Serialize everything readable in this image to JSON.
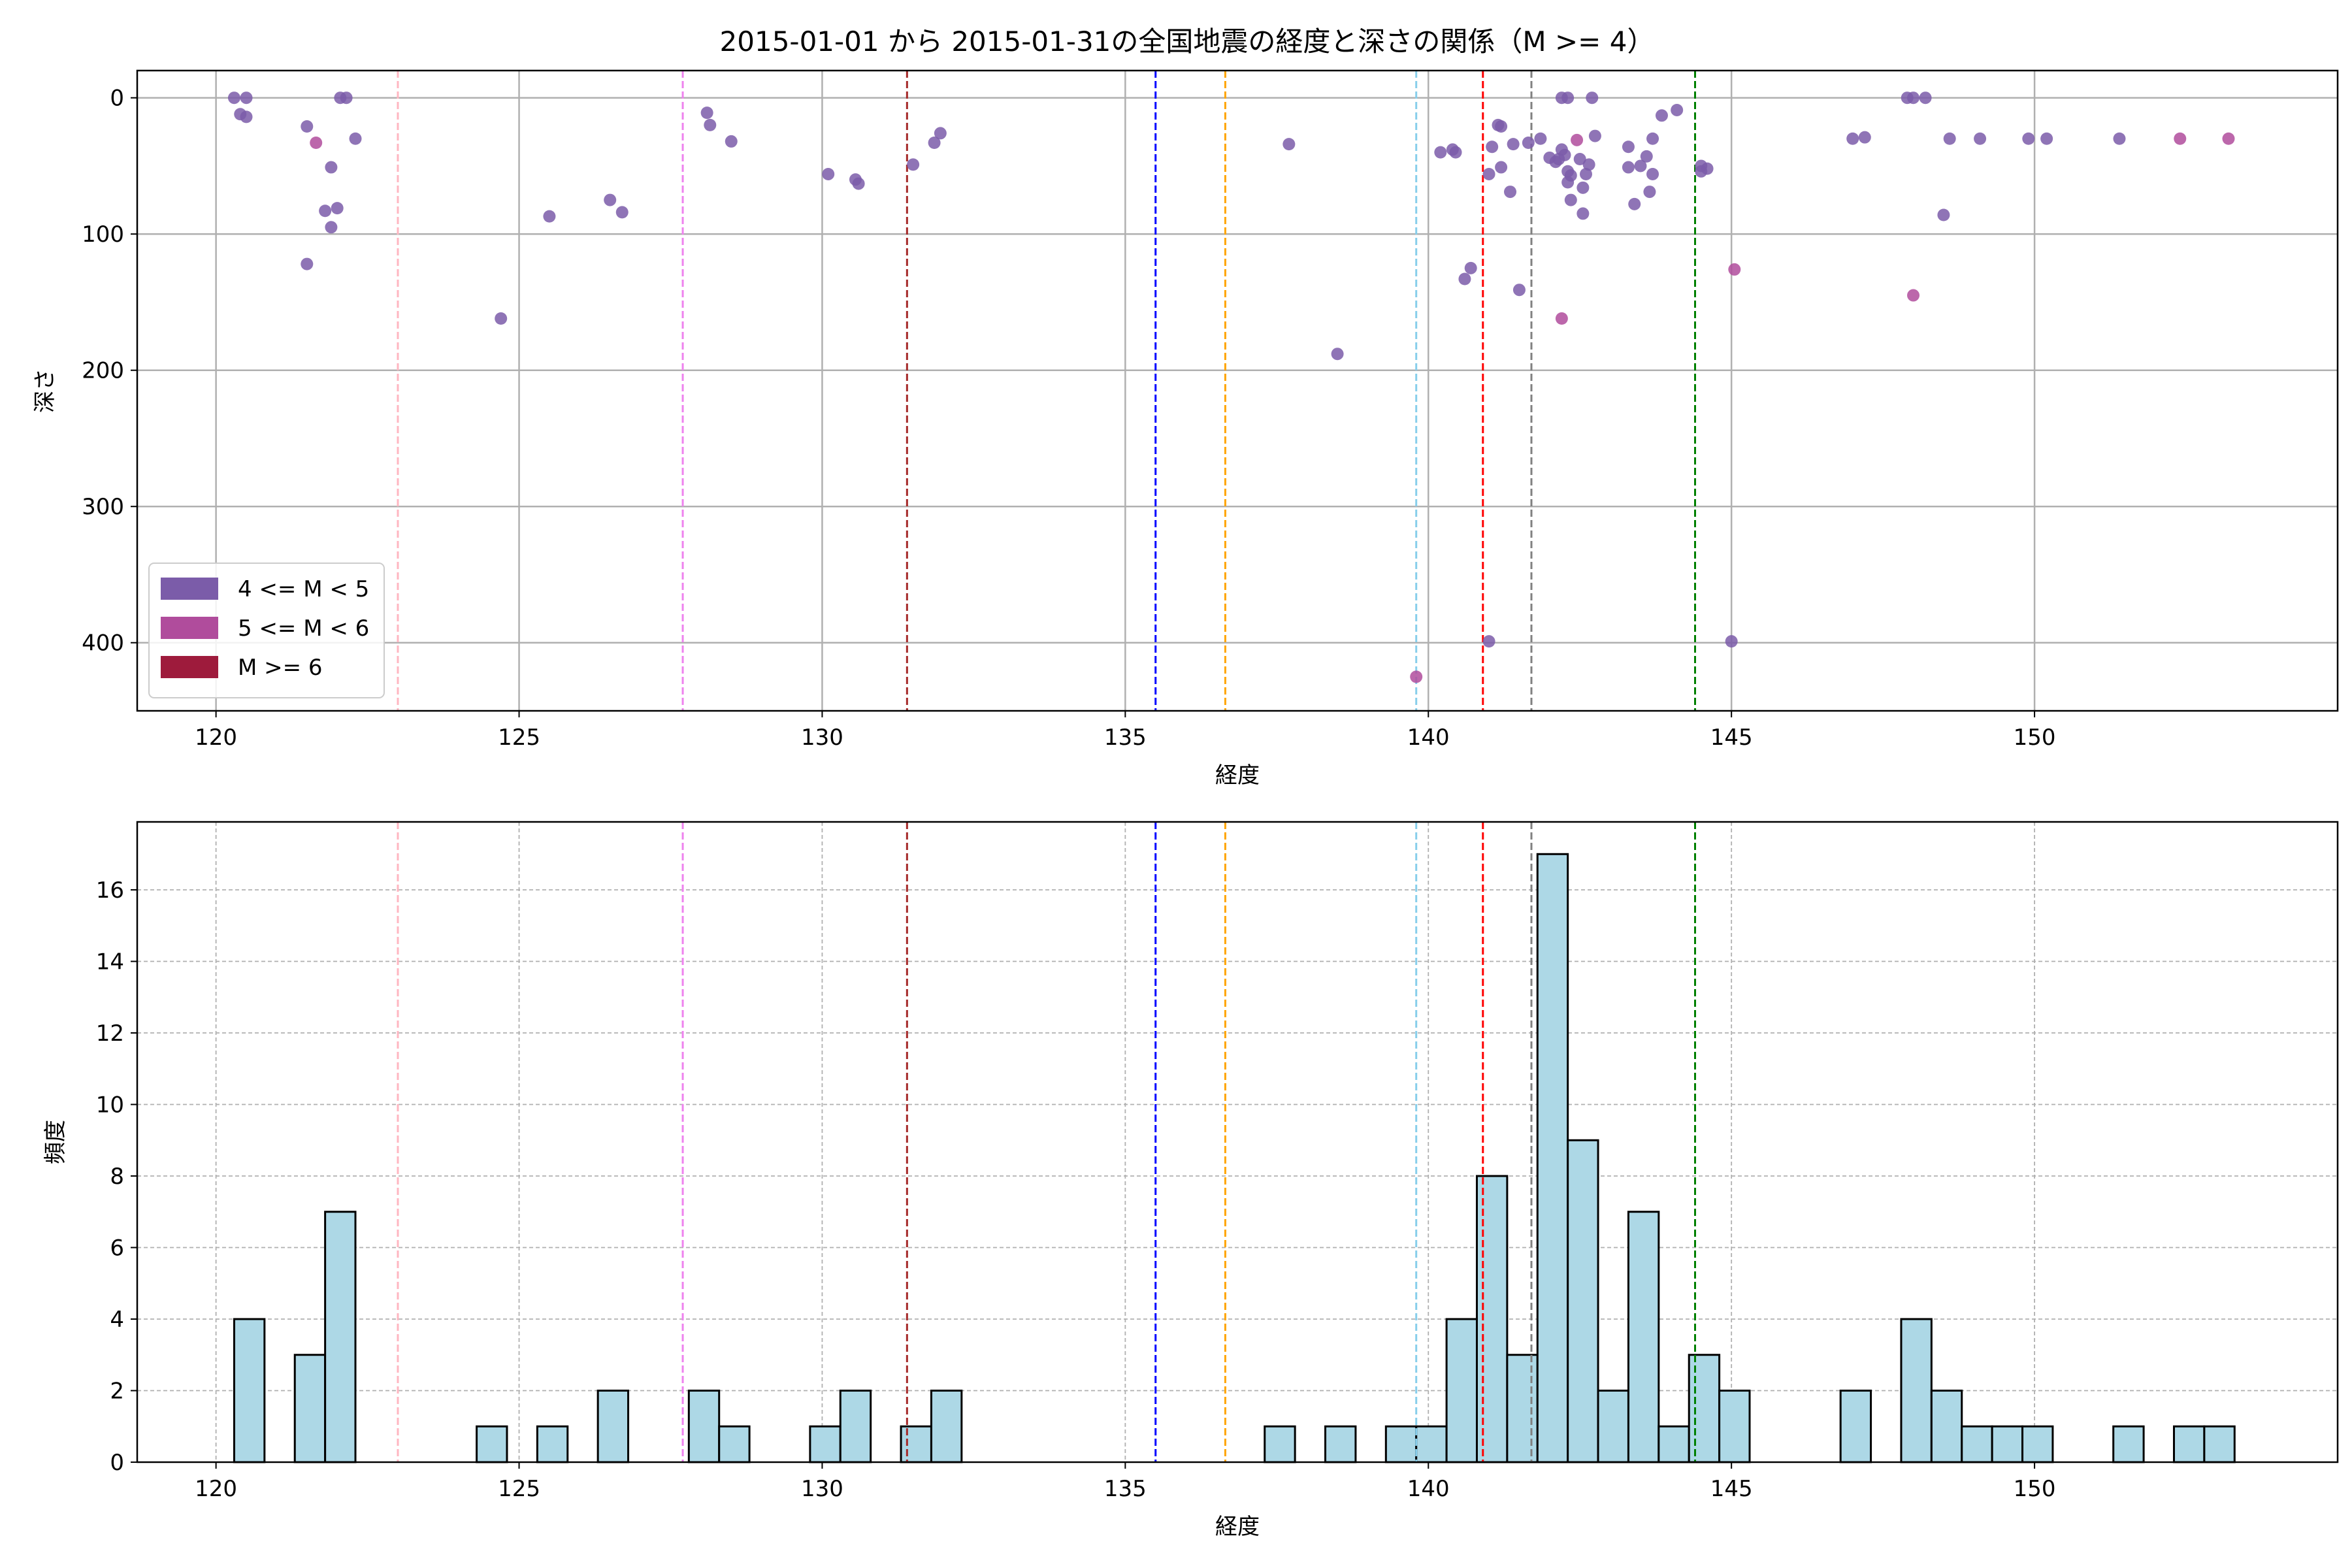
{
  "title": "2015-01-01 から 2015-01-31の全国地震の経度と深さの関係（M >= 4）",
  "colors": {
    "m4": "#7b5ca9",
    "m5": "#b04c9c",
    "m6": "#9e1b3c",
    "hist_fill": "#add8e6",
    "hist_edge": "#000000",
    "grid": "#b0b0b0"
  },
  "chart_data": [
    {
      "type": "scatter",
      "xlabel": "経度",
      "ylabel": "深さ",
      "xlim": [
        118.7,
        155.0
      ],
      "ylim": [
        450,
        -20
      ],
      "y_inverted": true,
      "xticks": [
        120,
        125,
        130,
        135,
        140,
        145,
        150
      ],
      "yticks": [
        0,
        100,
        200,
        300,
        400
      ],
      "grid": "solid",
      "legend": {
        "placement": "lower-left",
        "entries": [
          {
            "label": "4 <= M < 5",
            "color": "#7b5ca9"
          },
          {
            "label": "5 <= M < 6",
            "color": "#b04c9c"
          },
          {
            "label": "M >= 6",
            "color": "#9e1b3c"
          }
        ]
      },
      "vlines": [
        {
          "x": 123.0,
          "color": "#ffb6c1"
        },
        {
          "x": 127.7,
          "color": "#ee82ee"
        },
        {
          "x": 131.4,
          "color": "#a52a2a"
        },
        {
          "x": 135.5,
          "color": "#0000ff"
        },
        {
          "x": 136.65,
          "color": "#ffa500"
        },
        {
          "x": 139.8,
          "color": "#87ceeb"
        },
        {
          "x": 140.9,
          "color": "#ff0000"
        },
        {
          "x": 141.7,
          "color": "#808080"
        },
        {
          "x": 144.4,
          "color": "#008000"
        }
      ],
      "series": [
        {
          "name": "4 <= M < 5",
          "color": "#7b5ca9",
          "points": [
            [
              120.3,
              0
            ],
            [
              120.5,
              0
            ],
            [
              120.4,
              12
            ],
            [
              120.5,
              14
            ],
            [
              121.5,
              21
            ],
            [
              121.9,
              51
            ],
            [
              121.8,
              83
            ],
            [
              122.0,
              81
            ],
            [
              121.9,
              95
            ],
            [
              121.5,
              122
            ],
            [
              122.05,
              0
            ],
            [
              122.15,
              0
            ],
            [
              122.3,
              30
            ],
            [
              124.7,
              162
            ],
            [
              125.5,
              87
            ],
            [
              126.5,
              75
            ],
            [
              126.7,
              84
            ],
            [
              128.1,
              11
            ],
            [
              128.15,
              20
            ],
            [
              128.5,
              32
            ],
            [
              130.1,
              56
            ],
            [
              130.55,
              60
            ],
            [
              130.6,
              63
            ],
            [
              131.5,
              49
            ],
            [
              131.85,
              33
            ],
            [
              131.95,
              26
            ],
            [
              137.7,
              34
            ],
            [
              138.5,
              188
            ],
            [
              140.2,
              40
            ],
            [
              140.4,
              38
            ],
            [
              140.45,
              40
            ],
            [
              140.6,
              133
            ],
            [
              140.7,
              125
            ],
            [
              141.0,
              56
            ],
            [
              141.05,
              36
            ],
            [
              141.15,
              20
            ],
            [
              141.2,
              21
            ],
            [
              141.2,
              51
            ],
            [
              141.35,
              69
            ],
            [
              141.4,
              34
            ],
            [
              141.5,
              141
            ],
            [
              141.65,
              33
            ],
            [
              141.85,
              30
            ],
            [
              142.0,
              44
            ],
            [
              142.1,
              47
            ],
            [
              142.15,
              45
            ],
            [
              142.2,
              38
            ],
            [
              142.25,
              42
            ],
            [
              142.3,
              54
            ],
            [
              142.3,
              62
            ],
            [
              142.35,
              57
            ],
            [
              142.35,
              75
            ],
            [
              142.2,
              0
            ],
            [
              142.3,
              0
            ],
            [
              142.5,
              45
            ],
            [
              142.55,
              66
            ],
            [
              142.55,
              85
            ],
            [
              142.6,
              56
            ],
            [
              142.65,
              49
            ],
            [
              142.7,
              0
            ],
            [
              142.75,
              28
            ],
            [
              143.3,
              36
            ],
            [
              143.3,
              51
            ],
            [
              143.4,
              78
            ],
            [
              143.5,
              50
            ],
            [
              143.6,
              43
            ],
            [
              143.7,
              30
            ],
            [
              143.7,
              56
            ],
            [
              143.65,
              69
            ],
            [
              143.85,
              13
            ],
            [
              144.1,
              9
            ],
            [
              144.5,
              50
            ],
            [
              144.5,
              54
            ],
            [
              144.6,
              52
            ],
            [
              141.0,
              399
            ],
            [
              145.0,
              399
            ],
            [
              147.0,
              30
            ],
            [
              147.2,
              29
            ],
            [
              147.9,
              0
            ],
            [
              148.0,
              0
            ],
            [
              148.2,
              0
            ],
            [
              148.5,
              86
            ],
            [
              148.6,
              30
            ],
            [
              149.1,
              30
            ],
            [
              149.9,
              30
            ],
            [
              150.2,
              30
            ],
            [
              151.4,
              30
            ]
          ]
        },
        {
          "name": "5 <= M < 6",
          "color": "#b04c9c",
          "points": [
            [
              121.65,
              33
            ],
            [
              142.2,
              162
            ],
            [
              142.45,
              31
            ],
            [
              145.05,
              126
            ],
            [
              139.8,
              425
            ],
            [
              148.0,
              145
            ],
            [
              152.4,
              30
            ],
            [
              153.2,
              30
            ]
          ]
        },
        {
          "name": "M >= 6",
          "color": "#9e1b3c",
          "points": []
        }
      ]
    },
    {
      "type": "bar",
      "xlabel": "経度",
      "ylabel": "頻度",
      "xlim": [
        118.7,
        155.0
      ],
      "ylim": [
        0,
        17.9
      ],
      "xticks": [
        120,
        125,
        130,
        135,
        140,
        145,
        150
      ],
      "yticks": [
        0,
        2,
        4,
        6,
        8,
        10,
        12,
        14,
        16
      ],
      "grid": "dashed",
      "bin_width": 0.5,
      "bins": [
        {
          "x0": 120.3,
          "count": 4
        },
        {
          "x0": 121.3,
          "count": 3
        },
        {
          "x0": 121.8,
          "count": 7
        },
        {
          "x0": 124.3,
          "count": 1
        },
        {
          "x0": 125.3,
          "count": 1
        },
        {
          "x0": 126.3,
          "count": 2
        },
        {
          "x0": 127.8,
          "count": 2
        },
        {
          "x0": 128.3,
          "count": 1
        },
        {
          "x0": 129.8,
          "count": 1
        },
        {
          "x0": 130.3,
          "count": 2
        },
        {
          "x0": 131.3,
          "count": 1
        },
        {
          "x0": 131.8,
          "count": 2
        },
        {
          "x0": 137.3,
          "count": 1
        },
        {
          "x0": 138.3,
          "count": 1
        },
        {
          "x0": 139.3,
          "count": 1
        },
        {
          "x0": 139.8,
          "count": 1
        },
        {
          "x0": 140.3,
          "count": 4
        },
        {
          "x0": 140.8,
          "count": 8
        },
        {
          "x0": 141.3,
          "count": 3
        },
        {
          "x0": 141.8,
          "count": 17
        },
        {
          "x0": 142.3,
          "count": 9
        },
        {
          "x0": 142.8,
          "count": 2
        },
        {
          "x0": 143.3,
          "count": 7
        },
        {
          "x0": 143.8,
          "count": 1
        },
        {
          "x0": 144.3,
          "count": 3
        },
        {
          "x0": 144.8,
          "count": 2
        },
        {
          "x0": 146.8,
          "count": 2
        },
        {
          "x0": 147.8,
          "count": 4
        },
        {
          "x0": 148.3,
          "count": 2
        },
        {
          "x0": 148.8,
          "count": 1
        },
        {
          "x0": 149.3,
          "count": 1
        },
        {
          "x0": 149.8,
          "count": 1
        },
        {
          "x0": 151.3,
          "count": 1
        },
        {
          "x0": 152.3,
          "count": 1
        },
        {
          "x0": 152.8,
          "count": 1
        }
      ],
      "vlines": [
        {
          "x": 123.0,
          "color": "#ffb6c1"
        },
        {
          "x": 127.7,
          "color": "#ee82ee"
        },
        {
          "x": 131.4,
          "color": "#a52a2a"
        },
        {
          "x": 135.5,
          "color": "#0000ff"
        },
        {
          "x": 136.65,
          "color": "#ffa500"
        },
        {
          "x": 139.8,
          "color": "#87ceeb"
        },
        {
          "x": 140.9,
          "color": "#ff0000"
        },
        {
          "x": 141.7,
          "color": "#808080"
        },
        {
          "x": 144.4,
          "color": "#008000"
        }
      ]
    }
  ]
}
